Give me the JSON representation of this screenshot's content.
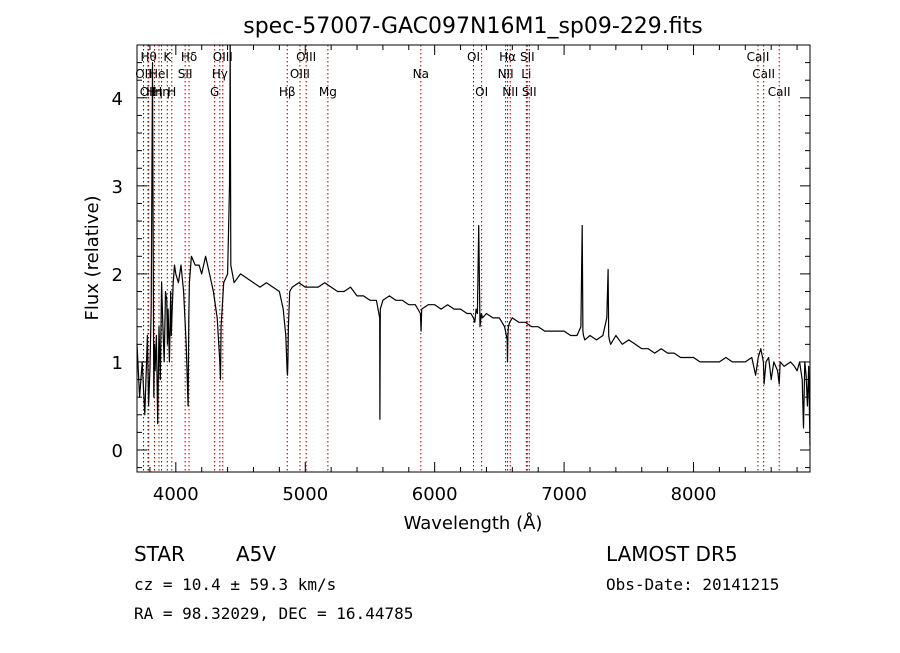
{
  "chart_data": {
    "type": "line",
    "title": "spec-57007-GAC097N16M1_sp09-229.fits",
    "xlabel": "Wavelength (Å)",
    "ylabel": "Flux (relative)",
    "xlim": [
      3700,
      8900
    ],
    "ylim": [
      -0.25,
      4.6
    ],
    "x_ticks": [
      4000,
      5000,
      6000,
      7000,
      8000
    ],
    "y_ticks": [
      0,
      1,
      2,
      3,
      4
    ],
    "grid": false,
    "series": [
      {
        "color": "#000000",
        "x": [
          3700,
          3720,
          3740,
          3760,
          3780,
          3790,
          3800,
          3810,
          3820,
          3830,
          3835,
          3840,
          3850,
          3860,
          3870,
          3880,
          3890,
          3900,
          3910,
          3920,
          3930,
          3935,
          3940,
          3950,
          3960,
          3965,
          3970,
          3980,
          3990,
          4000,
          4020,
          4040,
          4060,
          4080,
          4095,
          4100,
          4105,
          4120,
          4150,
          4180,
          4200,
          4230,
          4260,
          4290,
          4320,
          4340,
          4345,
          4350,
          4370,
          4400,
          4415,
          4420,
          4425,
          4450,
          4500,
          4550,
          4600,
          4650,
          4700,
          4750,
          4800,
          4830,
          4850,
          4860,
          4863,
          4866,
          4870,
          4880,
          4900,
          4950,
          5000,
          5050,
          5100,
          5150,
          5200,
          5250,
          5300,
          5350,
          5400,
          5450,
          5500,
          5550,
          5575,
          5577,
          5580,
          5600,
          5650,
          5700,
          5750,
          5800,
          5850,
          5890,
          5895,
          5900,
          5950,
          6000,
          6050,
          6100,
          6150,
          6200,
          6250,
          6280,
          6300,
          6310,
          6320,
          6330,
          6340,
          6350,
          6360,
          6370,
          6400,
          6450,
          6500,
          6520,
          6540,
          6560,
          6563,
          6566,
          6570,
          6580,
          6600,
          6650,
          6700,
          6750,
          6800,
          6850,
          6900,
          6950,
          7000,
          7050,
          7100,
          7130,
          7140,
          7145,
          7150,
          7160,
          7200,
          7250,
          7300,
          7330,
          7340,
          7345,
          7350,
          7360,
          7400,
          7450,
          7500,
          7550,
          7600,
          7650,
          7700,
          7750,
          7800,
          7850,
          7900,
          7950,
          8000,
          8050,
          8100,
          8150,
          8200,
          8250,
          8300,
          8350,
          8400,
          8450,
          8480,
          8500,
          8520,
          8540,
          8545,
          8560,
          8580,
          8600,
          8620,
          8650,
          8662,
          8670,
          8700,
          8750,
          8780,
          8800,
          8820,
          8840,
          8850,
          8860,
          8870,
          8880,
          8890,
          8900
        ],
        "y": [
          1.2,
          0.6,
          1.0,
          0.4,
          1.3,
          0.5,
          0.9,
          1.6,
          4.4,
          0.6,
          1.2,
          0.9,
          1.3,
          0.3,
          1.4,
          0.8,
          1.9,
          1.4,
          1.0,
          1.8,
          1.7,
          1.2,
          1.6,
          1.0,
          1.8,
          1.3,
          1.5,
          1.9,
          2.1,
          2.0,
          1.9,
          2.1,
          1.8,
          1.2,
          0.5,
          1.5,
          1.9,
          2.2,
          2.1,
          2.1,
          2.0,
          2.2,
          2.0,
          1.8,
          1.5,
          1.0,
          0.8,
          1.4,
          1.9,
          2.0,
          3.0,
          4.6,
          2.1,
          1.9,
          2.0,
          1.95,
          1.9,
          1.85,
          1.9,
          1.85,
          1.8,
          1.6,
          1.3,
          0.9,
          0.85,
          1.0,
          1.4,
          1.8,
          1.85,
          1.9,
          1.85,
          1.85,
          1.85,
          1.9,
          1.85,
          1.8,
          1.8,
          1.85,
          1.75,
          1.75,
          1.7,
          1.7,
          1.5,
          0.35,
          1.6,
          1.7,
          1.75,
          1.7,
          1.7,
          1.65,
          1.65,
          1.55,
          1.35,
          1.6,
          1.65,
          1.65,
          1.6,
          1.65,
          1.6,
          1.6,
          1.55,
          1.55,
          1.5,
          1.45,
          1.6,
          1.55,
          2.55,
          1.4,
          1.55,
          1.5,
          1.55,
          1.5,
          1.5,
          1.45,
          1.4,
          1.25,
          1.0,
          1.3,
          1.4,
          1.45,
          1.5,
          1.45,
          1.45,
          1.4,
          1.4,
          1.35,
          1.35,
          1.35,
          1.35,
          1.3,
          1.3,
          1.4,
          2.55,
          1.35,
          1.3,
          1.25,
          1.3,
          1.25,
          1.3,
          1.5,
          2.05,
          1.3,
          1.25,
          1.2,
          1.3,
          1.2,
          1.25,
          1.2,
          1.15,
          1.15,
          1.1,
          1.15,
          1.1,
          1.1,
          1.05,
          1.05,
          1.05,
          1.0,
          1.0,
          1.0,
          1.0,
          1.05,
          1.0,
          1.0,
          1.0,
          1.05,
          0.85,
          1.05,
          1.15,
          1.0,
          0.75,
          1.0,
          1.05,
          0.8,
          1.0,
          0.9,
          0.75,
          1.0,
          0.95,
          1.0,
          0.95,
          0.9,
          1.0,
          0.8,
          0.25,
          1.0,
          0.85,
          0.5,
          0.95,
          0.05
        ]
      }
    ],
    "lines": [
      {
        "x": 3750,
        "label": "OII",
        "row": 1
      },
      {
        "x": 3785,
        "label": "OII",
        "row": 2
      },
      {
        "x": 3790,
        "label": "Hθ",
        "row": 0
      },
      {
        "x": 3835,
        "label": "Hη",
        "row": 2
      },
      {
        "x": 3870,
        "label": "HeI",
        "row": 1
      },
      {
        "x": 3890,
        "label": "Hη",
        "row": 2
      },
      {
        "x": 3934,
        "label": "K",
        "row": 0
      },
      {
        "x": 3969,
        "label": "H",
        "row": 2
      },
      {
        "x": 4072,
        "label": "SII",
        "row": 1
      },
      {
        "x": 4102,
        "label": "Hδ",
        "row": 0
      },
      {
        "x": 4300,
        "label": "G",
        "row": 2
      },
      {
        "x": 4340,
        "label": "Hγ",
        "row": 1
      },
      {
        "x": 4363,
        "label": "OIII",
        "row": 0
      },
      {
        "x": 4861,
        "label": "Hβ",
        "row": 2
      },
      {
        "x": 4959,
        "label": "OIII",
        "row": 1
      },
      {
        "x": 5007,
        "label": "OIII",
        "row": 0
      },
      {
        "x": 5175,
        "label": "Mg",
        "row": 2
      },
      {
        "x": 5893,
        "label": "Na",
        "row": 1
      },
      {
        "x": 6300,
        "label": "OI",
        "row": 0
      },
      {
        "x": 6363,
        "label": "OI",
        "row": 2
      },
      {
        "x": 6548,
        "label": "NII",
        "row": 1
      },
      {
        "x": 6563,
        "label": "Hα",
        "row": 0
      },
      {
        "x": 6584,
        "label": "NII",
        "row": 2
      },
      {
        "x": 6708,
        "label": "Li",
        "row": 1
      },
      {
        "x": 6716,
        "label": "SII",
        "row": 0
      },
      {
        "x": 6731,
        "label": "SII",
        "row": 2
      },
      {
        "x": 8498,
        "label": "CaII",
        "row": 0
      },
      {
        "x": 8542,
        "label": "CaII",
        "row": 1
      },
      {
        "x": 8662,
        "label": "CaII",
        "row": 2
      }
    ],
    "line_color": "#8b0000"
  },
  "info": {
    "class": "STAR",
    "subclass": "A5V",
    "survey": "LAMOST DR5",
    "cz": "cz = 10.4 ± 59.3 km/s",
    "obs_date": "Obs-Date: 20141215",
    "coords": "RA =  98.32029, DEC =  16.44785"
  }
}
